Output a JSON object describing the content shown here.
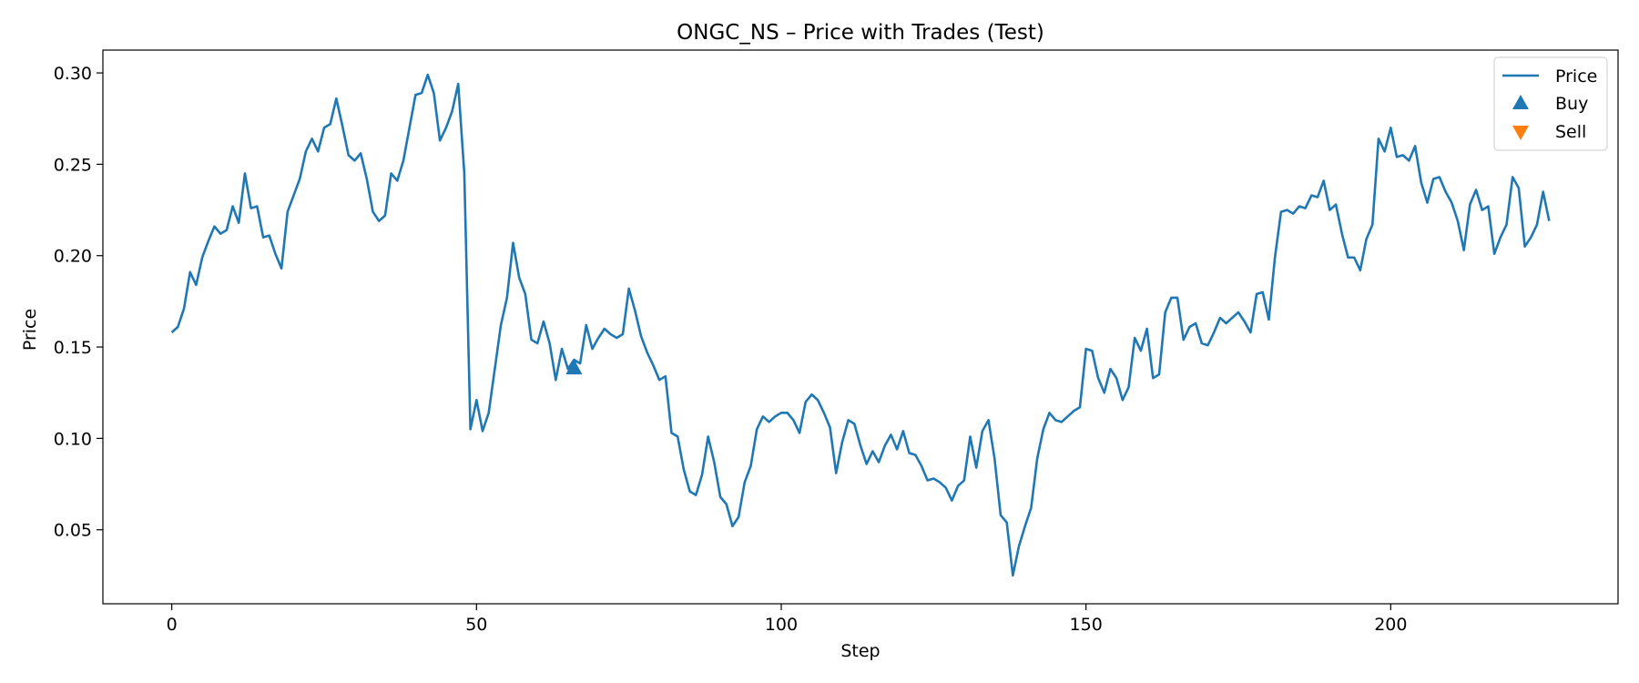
{
  "chart_data": {
    "type": "line",
    "title": "ONGC_NS – Price with Trades (Test)",
    "xlabel": "Step",
    "ylabel": "Price",
    "xlim": [
      -11.3,
      237.3
    ],
    "ylim": [
      0.0095,
      0.3125
    ],
    "xticks": [
      0,
      50,
      100,
      150,
      200
    ],
    "yticks": [
      0.05,
      0.1,
      0.15,
      0.2,
      0.25,
      0.3
    ],
    "ytick_labels": [
      "0.05",
      "0.10",
      "0.15",
      "0.20",
      "0.25",
      "0.30"
    ],
    "grid": false,
    "legend_position": "top-right",
    "series": [
      {
        "name": "Price",
        "color": "#1f77b4",
        "x_start": 0,
        "values": [
          0.158,
          0.161,
          0.171,
          0.191,
          0.184,
          0.199,
          0.208,
          0.216,
          0.212,
          0.214,
          0.227,
          0.218,
          0.245,
          0.226,
          0.227,
          0.21,
          0.211,
          0.201,
          0.193,
          0.224,
          0.233,
          0.242,
          0.257,
          0.264,
          0.257,
          0.27,
          0.272,
          0.286,
          0.271,
          0.255,
          0.252,
          0.256,
          0.242,
          0.224,
          0.219,
          0.222,
          0.245,
          0.241,
          0.252,
          0.27,
          0.288,
          0.289,
          0.299,
          0.289,
          0.263,
          0.27,
          0.279,
          0.294,
          0.245,
          0.105,
          0.121,
          0.104,
          0.114,
          0.138,
          0.162,
          0.177,
          0.207,
          0.188,
          0.179,
          0.154,
          0.152,
          0.164,
          0.152,
          0.132,
          0.149,
          0.138,
          0.143,
          0.141,
          0.162,
          0.149,
          0.155,
          0.16,
          0.157,
          0.155,
          0.157,
          0.182,
          0.17,
          0.156,
          0.147,
          0.14,
          0.132,
          0.134,
          0.103,
          0.101,
          0.083,
          0.071,
          0.069,
          0.08,
          0.101,
          0.087,
          0.068,
          0.064,
          0.052,
          0.057,
          0.076,
          0.085,
          0.105,
          0.112,
          0.109,
          0.112,
          0.114,
          0.114,
          0.11,
          0.103,
          0.12,
          0.124,
          0.121,
          0.114,
          0.106,
          0.081,
          0.098,
          0.11,
          0.108,
          0.096,
          0.086,
          0.093,
          0.087,
          0.096,
          0.102,
          0.094,
          0.104,
          0.092,
          0.091,
          0.085,
          0.077,
          0.078,
          0.076,
          0.073,
          0.066,
          0.074,
          0.077,
          0.101,
          0.084,
          0.104,
          0.11,
          0.089,
          0.058,
          0.054,
          0.025,
          0.041,
          0.052,
          0.062,
          0.089,
          0.105,
          0.114,
          0.11,
          0.109,
          0.112,
          0.115,
          0.117,
          0.149,
          0.148,
          0.133,
          0.125,
          0.138,
          0.133,
          0.121,
          0.128,
          0.155,
          0.148,
          0.16,
          0.133,
          0.135,
          0.169,
          0.177,
          0.177,
          0.154,
          0.161,
          0.163,
          0.152,
          0.151,
          0.158,
          0.166,
          0.163,
          0.166,
          0.169,
          0.164,
          0.158,
          0.179,
          0.18,
          0.165,
          0.199,
          0.224,
          0.225,
          0.223,
          0.227,
          0.226,
          0.233,
          0.232,
          0.241,
          0.225,
          0.228,
          0.212,
          0.199,
          0.199,
          0.192,
          0.209,
          0.217,
          0.264,
          0.257,
          0.27,
          0.254,
          0.255,
          0.252,
          0.26,
          0.24,
          0.229,
          0.242,
          0.243,
          0.235,
          0.229,
          0.219,
          0.203,
          0.228,
          0.236,
          0.225,
          0.227,
          0.201,
          0.21,
          0.217,
          0.243,
          0.237,
          0.205,
          0.21,
          0.217,
          0.235,
          0.219
        ]
      },
      {
        "name": "Buy",
        "color": "#1f77b4",
        "marker": "triangle-up",
        "points": [
          {
            "x": 66,
            "y": 0.139
          }
        ]
      },
      {
        "name": "Sell",
        "color": "#ff7f0e",
        "marker": "triangle-down",
        "points": []
      }
    ]
  }
}
